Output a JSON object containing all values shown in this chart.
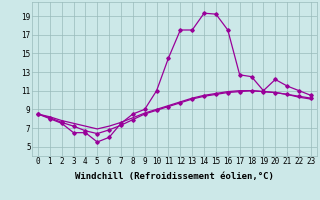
{
  "xlabel": "Windchill (Refroidissement éolien,°C)",
  "x_ticks": [
    0,
    1,
    2,
    3,
    4,
    5,
    6,
    7,
    8,
    9,
    10,
    11,
    12,
    13,
    14,
    15,
    16,
    17,
    18,
    19,
    20,
    21,
    22,
    23
  ],
  "ylim": [
    4.0,
    20.5
  ],
  "xlim": [
    -0.5,
    23.5
  ],
  "yticks": [
    5,
    7,
    9,
    11,
    13,
    15,
    17,
    19
  ],
  "line1_x": [
    0,
    1,
    2,
    3,
    4,
    5,
    6,
    7,
    8,
    9,
    10,
    11,
    12,
    13,
    14,
    15,
    16,
    17,
    18,
    19,
    20,
    21,
    22,
    23
  ],
  "line1_y": [
    8.5,
    8.0,
    7.5,
    6.5,
    6.5,
    5.5,
    6.0,
    7.5,
    8.5,
    9.0,
    11.0,
    14.5,
    17.5,
    17.5,
    19.3,
    19.2,
    17.5,
    12.7,
    12.5,
    11.0,
    12.2,
    11.5,
    11.0,
    10.5
  ],
  "line2_x": [
    0,
    1,
    2,
    3,
    4,
    5,
    6,
    7,
    8,
    9,
    10,
    11,
    12,
    13,
    14,
    15,
    16,
    17,
    18,
    19,
    20,
    21,
    22,
    23
  ],
  "line2_y": [
    8.5,
    8.1,
    7.6,
    7.2,
    6.7,
    6.4,
    6.8,
    7.3,
    7.9,
    8.5,
    8.9,
    9.3,
    9.7,
    10.1,
    10.4,
    10.6,
    10.8,
    10.9,
    11.0,
    10.9,
    10.8,
    10.6,
    10.4,
    10.2
  ],
  "line3_x": [
    0,
    1,
    2,
    3,
    4,
    5,
    6,
    7,
    8,
    9,
    10,
    11,
    12,
    13,
    14,
    15,
    16,
    17,
    18,
    19,
    20,
    21,
    22,
    23
  ],
  "line3_y": [
    8.5,
    8.2,
    7.8,
    7.5,
    7.2,
    6.9,
    7.2,
    7.6,
    8.1,
    8.6,
    9.0,
    9.4,
    9.8,
    10.2,
    10.5,
    10.7,
    10.9,
    11.0,
    11.0,
    10.9,
    10.8,
    10.6,
    10.3,
    10.1
  ],
  "line_color": "#990099",
  "bg_color": "#cce8e8",
  "grid_color": "#99bbbb",
  "tick_fontsize": 5.5,
  "xlabel_fontsize": 6.5
}
